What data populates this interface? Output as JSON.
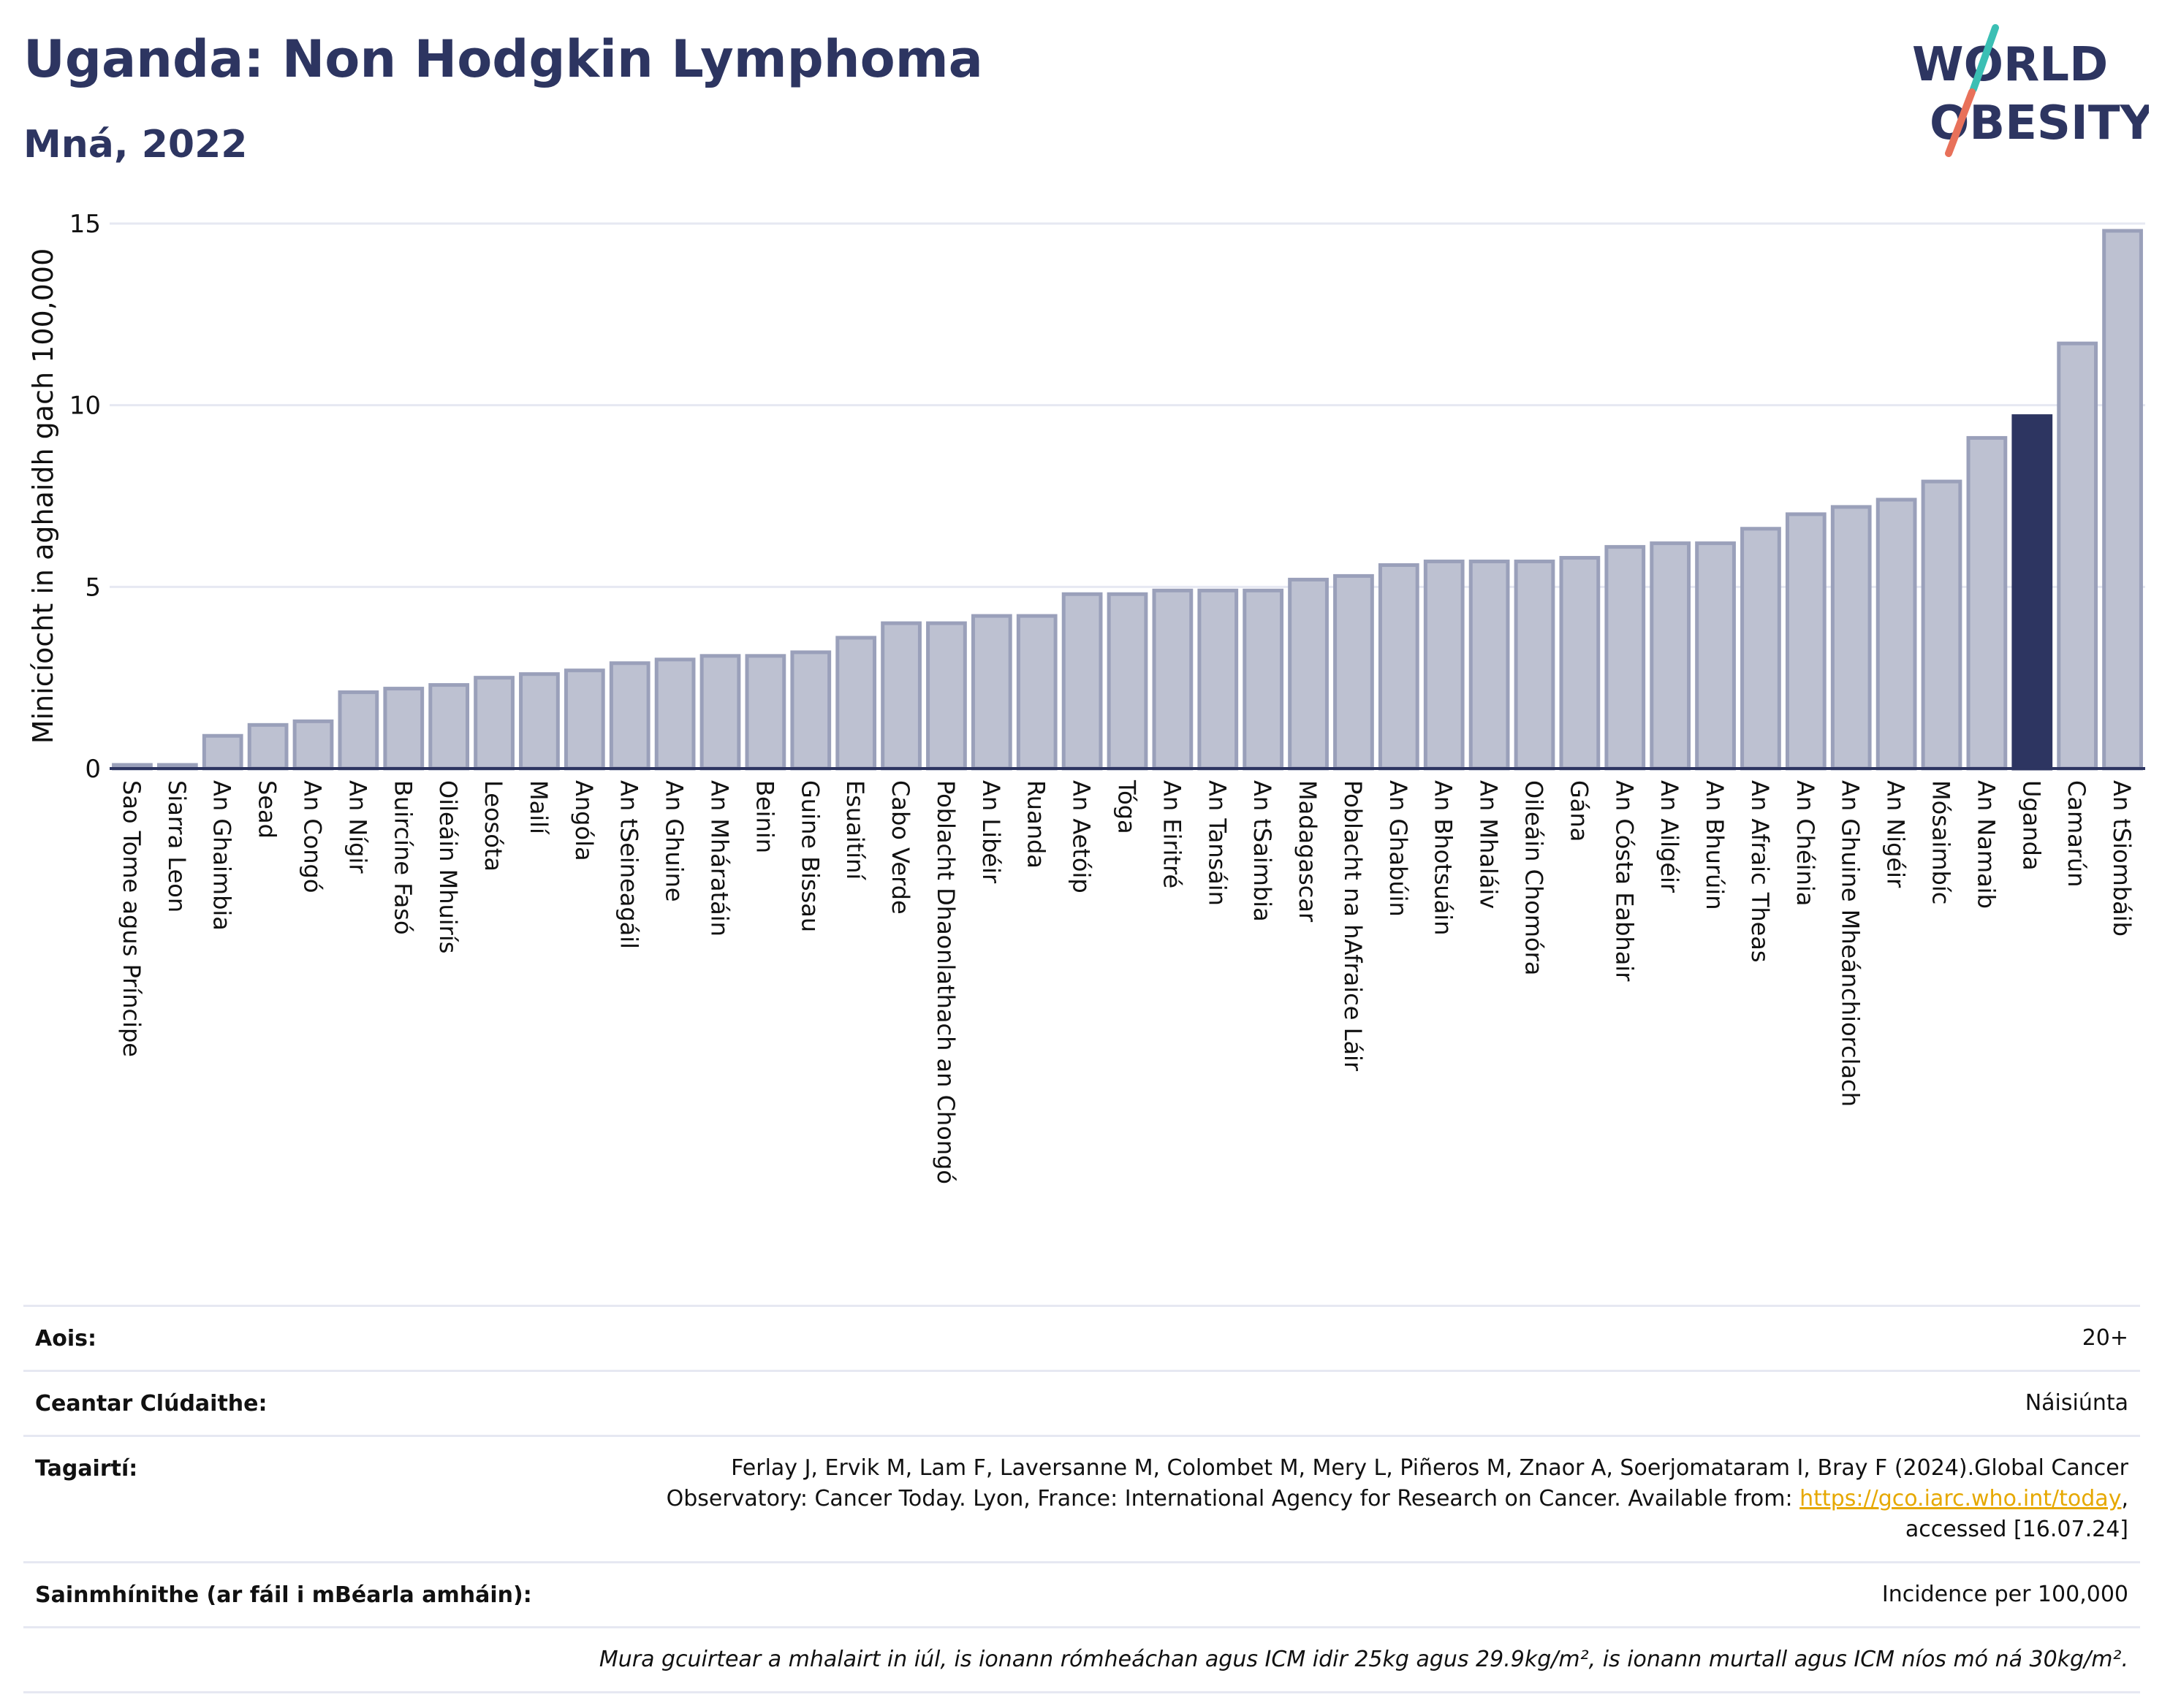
{
  "header": {
    "title": "Uganda: Non Hodgkin Lymphoma",
    "subtitle": "Mná, 2022"
  },
  "logo": {
    "line1": "WORLD",
    "line2": "OBESITY",
    "colors": {
      "text": "#2d3561",
      "teal": "#3bbfb4",
      "coral": "#e8715a"
    }
  },
  "chart_data": {
    "type": "bar",
    "ylabel": "Minicíocht in aghaidh gach 100,000",
    "ylim": [
      0,
      15
    ],
    "yticks": [
      0,
      5,
      10,
      15
    ],
    "grid": true,
    "highlight": "Uganda",
    "colors": {
      "bar": "#bdc1d1",
      "bar_border": "#9aa0ba",
      "highlight": "#2d3561",
      "grid": "#e6e8f2",
      "axis": "#2d3561"
    },
    "categories": [
      "Sao Tome agus Príncipe",
      "Siarra Leon",
      "An Ghaimbia",
      "Sead",
      "An Congó",
      "An Nígir",
      "Buircíne Fasó",
      "Oileáin Mhuirís",
      "Leosóta",
      "Mailí",
      "Angóla",
      "An tSeineagáil",
      "An Ghuine",
      "An Mháratáin",
      "Beinin",
      "Guine Bissau",
      "Esuaitíní",
      "Cabo Verde",
      "Poblacht Dhaonlathach an Chongó",
      "An Libéir",
      "Ruanda",
      "An Aetóip",
      "Tóga",
      "An Eiritré",
      "An Tansáin",
      "An tSaimbia",
      "Madagascar",
      "Poblacht na hAfraice Láir",
      "An Ghabúin",
      "An Bhotsuáin",
      "An Mhaláiv",
      "Oileáin Chomóra",
      "Gána",
      "An Cósta Eabhair",
      "An Ailgéir",
      "An Bhurúin",
      "An Afraic Theas",
      "An Chéinia",
      "An Ghuine Mheánchiorclach",
      "An Nigéir",
      "Mósaimbíc",
      "An Namaib",
      "Uganda",
      "Camarún",
      "An tSiombáib"
    ],
    "values": [
      0.1,
      0.1,
      0.9,
      1.2,
      1.3,
      2.1,
      2.2,
      2.3,
      2.5,
      2.6,
      2.7,
      2.9,
      3.0,
      3.1,
      3.1,
      3.2,
      3.6,
      4.0,
      4.0,
      4.2,
      4.2,
      4.8,
      4.8,
      4.9,
      4.9,
      4.9,
      5.2,
      5.3,
      5.6,
      5.7,
      5.7,
      5.7,
      5.8,
      6.1,
      6.2,
      6.2,
      6.6,
      7.0,
      7.2,
      7.4,
      7.9,
      9.1,
      9.7,
      11.7,
      14.8
    ]
  },
  "info": {
    "age_label": "Aois:",
    "age_value": "20+",
    "area_label": "Ceantar Clúdaithe:",
    "area_value": "Náisiúnta",
    "ref_label": "Tagairtí:",
    "ref_text_1": "Ferlay J, Ervik M, Lam F, Laversanne M, Colombet M, Mery L, Piñeros M, Znaor A, Soerjomataram I, Bray F (2024).Global Cancer",
    "ref_text_2": "Observatory: Cancer Today. Lyon, France: International Agency for Research on Cancer. Available from: ",
    "ref_link": "https://gco.iarc.who.int/today",
    "ref_text_3": ",",
    "ref_text_4": "accessed [16.07.24]",
    "def_label": "Sainmhínithe (ar fáil i mBéarla amháin):",
    "def_value": "Incidence per 100,000",
    "note": "Mura gcuirtear a mhalairt in iúl, is ionann rómheáchan agus ICM idir 25kg agus 29.9kg/m², is ionann murtall agus ICM níos mó ná 30kg/m²."
  }
}
